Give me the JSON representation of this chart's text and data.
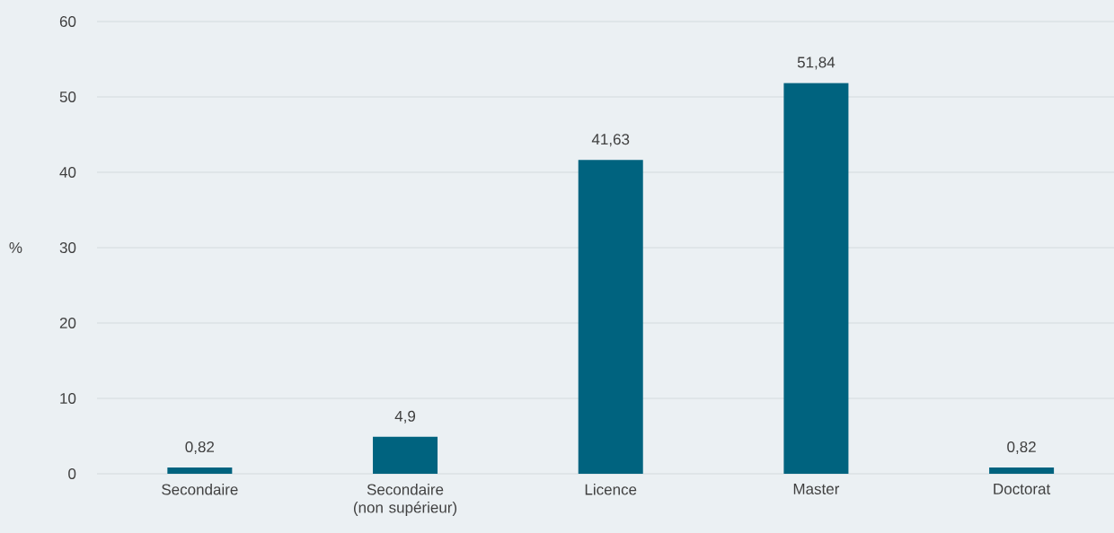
{
  "chart_data": {
    "type": "bar",
    "ylabel": "%",
    "categories": [
      "Secondaire",
      "Secondaire (non supérieur)",
      "Licence",
      "Master",
      "Doctorat"
    ],
    "values": [
      0.82,
      4.9,
      41.63,
      51.84,
      0.82
    ],
    "value_labels": [
      "0,82",
      "4,9",
      "41,63",
      "51,84",
      "0,82"
    ],
    "color": "#00637f",
    "ylim": [
      0,
      60
    ],
    "yticks": [
      0,
      10,
      20,
      30,
      40,
      50,
      60
    ],
    "grid": "y"
  }
}
